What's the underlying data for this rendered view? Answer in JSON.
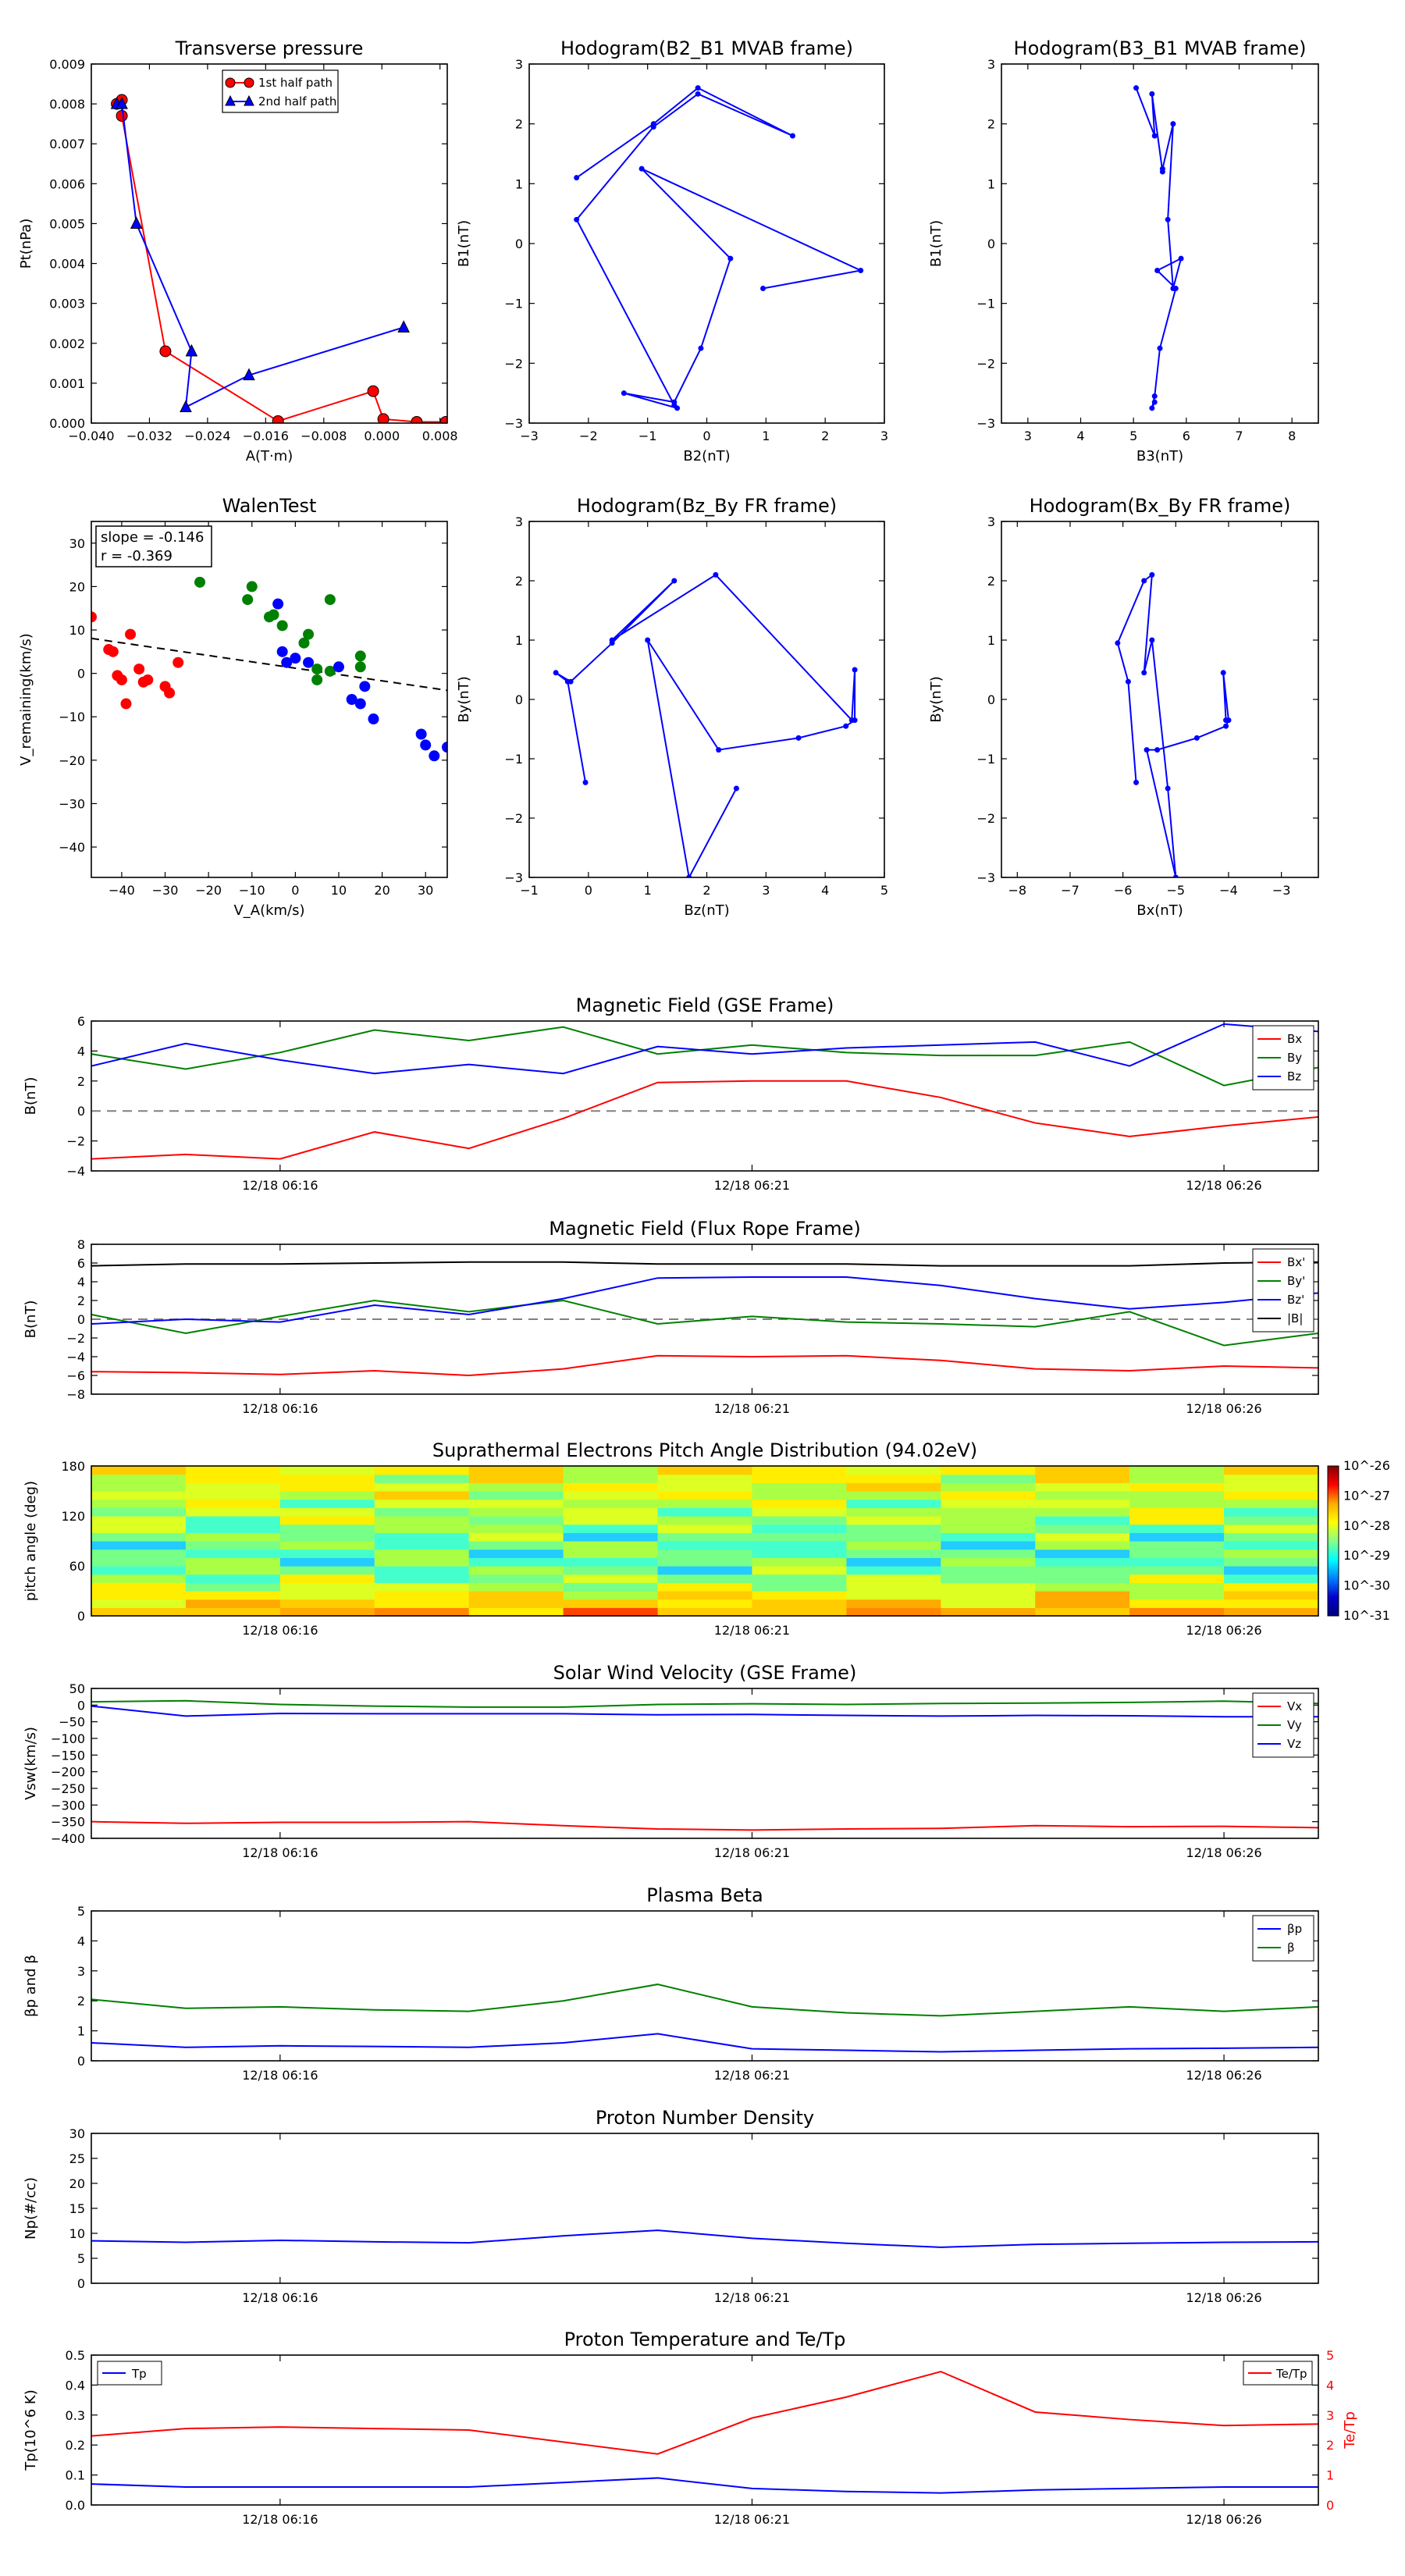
{
  "colors": {
    "red": "#ff0000",
    "green": "#008000",
    "blue": "#0000ff",
    "black": "#000000",
    "dash": "#808080"
  },
  "panels": [
    {
      "id": "tp",
      "title": "Transverse pressure",
      "xlabel": "A(T·m)",
      "ylabel": "Pt(nPa)",
      "xlim": [
        -0.04,
        0.009
      ],
      "ylim": [
        0,
        0.009
      ],
      "xticks": [
        -0.04,
        -0.032,
        -0.024,
        -0.016,
        -0.008,
        0,
        0.008
      ],
      "xtick_labels": [
        "−0.040",
        "−0.032",
        "−0.024",
        "−0.016",
        "−0.008",
        "0.000",
        "0.008"
      ],
      "yticks": [
        0,
        0.001,
        0.002,
        0.003,
        0.004,
        0.005,
        0.006,
        0.007,
        0.008,
        0.009
      ],
      "ytick_labels": [
        "0.000",
        "0.001",
        "0.002",
        "0.003",
        "0.004",
        "0.005",
        "0.006",
        "0.007",
        "0.008",
        "0.009"
      ],
      "legend": [
        "1st half path",
        "2nd half path"
      ],
      "series": [
        {
          "name": "1st half path",
          "color": "red",
          "marker": "circle",
          "x": [
            -0.0365,
            -0.0358,
            -0.0358,
            -0.0298,
            -0.0143,
            -0.0012,
            0.0002,
            0.0048,
            0.0088
          ],
          "y": [
            0.008,
            0.0081,
            0.0077,
            0.0018,
            5e-05,
            0.0008,
            0.0001,
            3e-05,
            3e-05
          ]
        },
        {
          "name": "2nd half path",
          "color": "blue",
          "marker": "triangle",
          "x": [
            -0.0365,
            -0.0358,
            -0.0338,
            -0.0262,
            -0.027,
            -0.0183,
            0.003
          ],
          "y": [
            0.008,
            0.008,
            0.005,
            0.0018,
            0.0004,
            0.0012,
            0.0024
          ]
        }
      ]
    },
    {
      "id": "h1",
      "title": "Hodogram(B2_B1 MVAB frame)",
      "xlabel": "B2(nT)",
      "ylabel": "B1(nT)",
      "xlim": [
        -3,
        3
      ],
      "ylim": [
        -3,
        3
      ],
      "xticks": [
        -3,
        -2,
        -1,
        0,
        1,
        2,
        3
      ],
      "xtick_labels": [
        "−3",
        "−2",
        "−1",
        "0",
        "1",
        "2",
        "3"
      ],
      "yticks": [
        -3,
        -2,
        -1,
        0,
        1,
        2,
        3
      ],
      "ytick_labels": [
        "−3",
        "−2",
        "−1",
        "0",
        "1",
        "2",
        "3"
      ],
      "series": [
        {
          "color": "blue",
          "marker": "dot",
          "x": [
            -2.2,
            -0.9,
            -0.15,
            1.45,
            -0.15,
            -0.9,
            -2.2,
            -0.55,
            -0.5,
            -1.4,
            -0.55,
            -0.1,
            0.4,
            -1.1,
            2.6,
            0.95
          ],
          "y": [
            1.1,
            2.0,
            2.6,
            1.8,
            2.5,
            1.95,
            0.4,
            -2.7,
            -2.75,
            -2.5,
            -2.65,
            -1.75,
            -0.25,
            1.25,
            -0.45,
            -0.75
          ]
        }
      ]
    },
    {
      "id": "h2",
      "title": "Hodogram(B3_B1 MVAB frame)",
      "xlabel": "B3(nT)",
      "ylabel": "B1(nT)",
      "xlim": [
        2.5,
        8.5
      ],
      "ylim": [
        -3,
        3
      ],
      "xticks": [
        3,
        4,
        5,
        6,
        7,
        8
      ],
      "xtick_labels": [
        "3",
        "4",
        "5",
        "6",
        "7",
        "8"
      ],
      "yticks": [
        -3,
        -2,
        -1,
        0,
        1,
        2,
        3
      ],
      "ytick_labels": [
        "−3",
        "−2",
        "−1",
        "0",
        "1",
        "2",
        "3"
      ],
      "series": [
        {
          "color": "blue",
          "marker": "dot",
          "x": [
            5.05,
            5.4,
            5.35,
            5.55,
            5.55,
            5.75,
            5.65,
            5.75,
            5.9,
            5.45,
            5.8,
            5.5,
            5.4,
            5.35,
            5.4
          ],
          "y": [
            2.6,
            1.8,
            2.5,
            1.2,
            1.25,
            2.0,
            0.4,
            -0.75,
            -0.25,
            -0.45,
            -0.75,
            -1.75,
            -2.55,
            -2.75,
            -2.65
          ]
        }
      ]
    },
    {
      "id": "walen",
      "title": "WalenTest",
      "xlabel": "V_A(km/s)",
      "ylabel": "V_remaining(km/s)",
      "xlim": [
        -47,
        35
      ],
      "ylim": [
        -47,
        35
      ],
      "xticks": [
        -40,
        -30,
        -20,
        -10,
        0,
        10,
        20,
        30
      ],
      "xtick_labels": [
        "−40",
        "−30",
        "−20",
        "−10",
        "0",
        "10",
        "20",
        "30"
      ],
      "yticks": [
        -40,
        -30,
        -20,
        -10,
        0,
        10,
        20,
        30
      ],
      "ytick_labels": [
        "−40",
        "−30",
        "−20",
        "−10",
        "0",
        "10",
        "20",
        "30"
      ],
      "annotation": [
        "slope = -0.146",
        "r = -0.369"
      ],
      "fit": {
        "slope": -0.146,
        "intercept": 1.2
      },
      "groups": [
        {
          "color": "red",
          "x": [
            -47,
            -43,
            -42,
            -41,
            -40,
            -39,
            -38,
            -36,
            -35,
            -34,
            -30,
            -29,
            -27
          ],
          "y": [
            13,
            5.5,
            5,
            -0.5,
            -1.5,
            -7,
            9,
            1,
            -2,
            -1.5,
            -3,
            -4.5,
            2.5
          ]
        },
        {
          "color": "green",
          "x": [
            -22,
            -11,
            -10,
            -6,
            -5,
            -3,
            2,
            3,
            5,
            5,
            8,
            8,
            15,
            15
          ],
          "y": [
            21,
            17,
            20,
            13,
            13.5,
            11,
            7,
            9,
            -1.5,
            1,
            0.5,
            17,
            1.5,
            4
          ]
        },
        {
          "color": "blue",
          "x": [
            -4,
            -3,
            -2,
            0,
            3,
            10,
            13,
            15,
            16,
            18,
            29,
            30,
            32,
            35
          ],
          "y": [
            16,
            5,
            2.5,
            3.5,
            2.5,
            1.5,
            -6,
            -7,
            -3,
            -10.5,
            -14,
            -16.5,
            -19,
            -17
          ]
        }
      ]
    },
    {
      "id": "h3",
      "title": "Hodogram(Bz_By FR frame)",
      "xlabel": "Bz(nT)",
      "ylabel": "By(nT)",
      "xlim": [
        -1,
        5
      ],
      "ylim": [
        -3,
        3
      ],
      "xticks": [
        -1,
        0,
        1,
        2,
        3,
        4,
        5
      ],
      "xtick_labels": [
        "−1",
        "0",
        "1",
        "2",
        "3",
        "4",
        "5"
      ],
      "yticks": [
        -3,
        -2,
        -1,
        0,
        1,
        2,
        3
      ],
      "ytick_labels": [
        "−3",
        "−2",
        "−1",
        "0",
        "1",
        "2",
        "3"
      ],
      "series": [
        {
          "color": "blue",
          "marker": "dot",
          "x": [
            -0.05,
            -0.35,
            -0.55,
            -0.3,
            0.4,
            1.45,
            0.4,
            2.15,
            4.45,
            4.5,
            4.5,
            4.35,
            3.55,
            2.2,
            1.0,
            1.7,
            2.5
          ],
          "y": [
            -1.4,
            0.3,
            0.45,
            0.3,
            0.95,
            2.0,
            1.0,
            2.1,
            -0.35,
            0.5,
            -0.35,
            -0.45,
            -0.65,
            -0.85,
            1.0,
            -3.0,
            -1.5
          ]
        }
      ]
    },
    {
      "id": "h4",
      "title": "Hodogram(Bx_By FR frame)",
      "xlabel": "Bx(nT)",
      "ylabel": "By(nT)",
      "xlim": [
        -8.3,
        -2.3
      ],
      "ylim": [
        -3,
        3
      ],
      "xticks": [
        -8,
        -7,
        -6,
        -5,
        -4,
        -3
      ],
      "xtick_labels": [
        "−8",
        "−7",
        "−6",
        "−5",
        "−4",
        "−3"
      ],
      "yticks": [
        -3,
        -2,
        -1,
        0,
        1,
        2,
        3
      ],
      "ytick_labels": [
        "−3",
        "−2",
        "−1",
        "0",
        "1",
        "2",
        "3"
      ],
      "series": [
        {
          "color": "blue",
          "marker": "dot",
          "x": [
            -5.75,
            -5.9,
            -6.1,
            -5.6,
            -5.45,
            -5.6,
            -5.45,
            -5.15,
            -5.0,
            -5.55,
            -5.35,
            -4.6,
            -4.05,
            -4.0,
            -4.1,
            -4.05
          ],
          "y": [
            -1.4,
            0.3,
            0.95,
            2.0,
            2.1,
            0.45,
            1.0,
            -1.5,
            -3.0,
            -0.85,
            -0.85,
            -0.65,
            -0.45,
            -0.35,
            0.45,
            -0.35
          ]
        }
      ]
    }
  ],
  "time_axis": {
    "tmin": 0,
    "tmax": 13,
    "ticks": [
      2,
      7,
      12
    ],
    "tick_labels": [
      "12/18 06:16",
      "12/18 06:21",
      "12/18 06:26"
    ],
    "x": [
      0,
      1,
      2,
      3,
      4,
      5,
      6,
      7,
      8,
      9,
      10,
      11,
      12,
      13
    ]
  },
  "time_panels": [
    {
      "id": "mag_gse",
      "title": "Magnetic Field (GSE Frame)",
      "ylabel": "B(nT)",
      "ylim": [
        -4,
        6
      ],
      "yticks": [
        -4,
        -2,
        0,
        2,
        4,
        6
      ],
      "ytick_labels": [
        "−4",
        "−2",
        "0",
        "2",
        "4",
        "6"
      ],
      "zero_line": true,
      "legend_pos": "right",
      "series": [
        {
          "name": "Bx",
          "color": "red",
          "values": [
            -3.2,
            -2.9,
            -3.2,
            -1.4,
            -2.5,
            -0.5,
            1.9,
            2.0,
            2.0,
            0.9,
            -0.8,
            -1.7,
            -1.0,
            -0.4
          ]
        },
        {
          "name": "By",
          "color": "green",
          "values": [
            3.8,
            2.8,
            3.9,
            5.4,
            4.7,
            5.6,
            3.8,
            4.4,
            3.9,
            3.7,
            3.7,
            4.6,
            1.7,
            2.9
          ]
        },
        {
          "name": "Bz",
          "color": "blue",
          "values": [
            3.0,
            4.5,
            3.4,
            2.5,
            3.1,
            2.5,
            4.3,
            3.8,
            4.2,
            4.4,
            4.6,
            3.0,
            5.8,
            5.3
          ]
        }
      ]
    },
    {
      "id": "mag_fr",
      "title": "Magnetic Field (Flux Rope Frame)",
      "ylabel": "B(nT)",
      "ylim": [
        -8,
        8
      ],
      "yticks": [
        -8,
        -6,
        -4,
        -2,
        0,
        2,
        4,
        6,
        8
      ],
      "ytick_labels": [
        "−8",
        "−6",
        "−4",
        "−2",
        "0",
        "2",
        "4",
        "6",
        "8"
      ],
      "zero_line": true,
      "legend_pos": "right",
      "series": [
        {
          "name": "Bx'",
          "color": "red",
          "values": [
            -5.6,
            -5.7,
            -5.9,
            -5.5,
            -6.0,
            -5.3,
            -3.9,
            -4.0,
            -3.9,
            -4.4,
            -5.3,
            -5.5,
            -5.0,
            -5.2
          ]
        },
        {
          "name": "By'",
          "color": "green",
          "values": [
            0.5,
            -1.5,
            0.3,
            2.0,
            0.8,
            2.0,
            -0.5,
            0.3,
            -0.3,
            -0.5,
            -0.8,
            0.8,
            -2.8,
            -1.5
          ]
        },
        {
          "name": "Bz'",
          "color": "blue",
          "values": [
            -0.5,
            0,
            -0.3,
            1.5,
            0.5,
            2.2,
            4.4,
            4.5,
            4.5,
            3.6,
            2.2,
            1.1,
            1.8,
            2.8
          ]
        },
        {
          "name": "|B|",
          "color": "black",
          "values": [
            5.7,
            5.9,
            5.9,
            6.0,
            6.1,
            6.1,
            5.9,
            5.9,
            5.9,
            5.7,
            5.7,
            5.7,
            6.0,
            6.1
          ]
        }
      ]
    },
    {
      "id": "pad",
      "type": "heatmap",
      "title": "Suprathermal Electrons Pitch Angle Distribution (94.02eV)",
      "ylabel": "pitch angle (deg)",
      "ylim": [
        0,
        180
      ],
      "yticks": [
        0,
        60,
        120,
        180
      ],
      "ytick_labels": [
        "0",
        "60",
        "120",
        "180"
      ],
      "colorbar_labels": [
        "10^-26",
        "10^-27",
        "10^-28",
        "10^-29",
        "10^-30",
        "10^-31"
      ],
      "columns": 13,
      "rows": 18,
      "base_profile": [
        0.25,
        0.35,
        0.42,
        0.55,
        0.62,
        0.7,
        0.72,
        0.72,
        0.7,
        0.68,
        0.65,
        0.6,
        0.58,
        0.55,
        0.52,
        0.5,
        0.48,
        0.42
      ]
    },
    {
      "id": "vsw",
      "title": "Solar Wind Velocity (GSE Frame)",
      "ylabel": "Vsw(km/s)",
      "ylim": [
        -400,
        50
      ],
      "yticks": [
        -400,
        -350,
        -300,
        -250,
        -200,
        -150,
        -100,
        -50,
        0,
        50
      ],
      "ytick_labels": [
        "−400",
        "−350",
        "−300",
        "−250",
        "−200",
        "−150",
        "−100",
        "−50",
        "0",
        "50"
      ],
      "legend_pos": "right",
      "series": [
        {
          "name": "Vx",
          "color": "red",
          "values": [
            -350,
            -355,
            -352,
            -352,
            -350,
            -362,
            -372,
            -375,
            -372,
            -370,
            -362,
            -365,
            -364,
            -368
          ]
        },
        {
          "name": "Vy",
          "color": "green",
          "values": [
            10,
            13,
            2,
            -3,
            -6,
            -6,
            2,
            4,
            2,
            5,
            6,
            8,
            12,
            5
          ]
        },
        {
          "name": "Vz",
          "color": "blue",
          "values": [
            -3,
            -33,
            -25,
            -26,
            -26,
            -26,
            -29,
            -28,
            -31,
            -33,
            -31,
            -32,
            -35,
            -35
          ]
        }
      ]
    },
    {
      "id": "beta",
      "title": "Plasma Beta",
      "ylabel": "βp and β",
      "ylim": [
        0,
        5
      ],
      "yticks": [
        0,
        1,
        2,
        3,
        4,
        5
      ],
      "ytick_labels": [
        "0",
        "1",
        "2",
        "3",
        "4",
        "5"
      ],
      "legend_pos": "right",
      "series": [
        {
          "name": "βp",
          "color": "blue",
          "values": [
            0.6,
            0.45,
            0.5,
            0.48,
            0.45,
            0.6,
            0.9,
            0.4,
            0.35,
            0.3,
            0.35,
            0.4,
            0.42,
            0.45
          ]
        },
        {
          "name": "β",
          "color": "green",
          "values": [
            2.05,
            1.75,
            1.8,
            1.7,
            1.65,
            2.0,
            2.55,
            1.8,
            1.6,
            1.5,
            1.65,
            1.8,
            1.65,
            1.8
          ]
        }
      ]
    },
    {
      "id": "np",
      "title": "Proton Number Density",
      "ylabel": "Np(#/cc)",
      "ylim": [
        0,
        30
      ],
      "yticks": [
        0,
        5,
        10,
        15,
        20,
        25,
        30
      ],
      "ytick_labels": [
        "0",
        "5",
        "10",
        "15",
        "20",
        "25",
        "30"
      ],
      "legend_pos": "none",
      "series": [
        {
          "name": "Np",
          "color": "blue",
          "values": [
            8.5,
            8.2,
            8.6,
            8.3,
            8.1,
            9.5,
            10.6,
            9.0,
            8.0,
            7.2,
            7.8,
            8.0,
            8.2,
            8.3
          ]
        }
      ]
    },
    {
      "id": "tpr",
      "title": "Proton Temperature and Te/Tp",
      "ylabel": "Tp(10^6 K)",
      "ylim": [
        0,
        0.5
      ],
      "yticks": [
        0,
        0.1,
        0.2,
        0.3,
        0.4,
        0.5
      ],
      "ytick_labels": [
        "0.0",
        "0.1",
        "0.2",
        "0.3",
        "0.4",
        "0.5"
      ],
      "y2label": "Te/Tp",
      "y2lim": [
        0,
        5
      ],
      "y2ticks": [
        0,
        1,
        2,
        3,
        4,
        5
      ],
      "y2tick_labels": [
        "0",
        "1",
        "2",
        "3",
        "4",
        "5"
      ],
      "series": [
        {
          "name": "Tp",
          "color": "blue",
          "values": [
            0.07,
            0.06,
            0.06,
            0.06,
            0.06,
            0.075,
            0.09,
            0.055,
            0.045,
            0.04,
            0.05,
            0.055,
            0.06,
            0.06
          ]
        }
      ],
      "series2": [
        {
          "name": "Te/Tp",
          "color": "red",
          "values": [
            2.3,
            2.55,
            2.6,
            2.55,
            2.5,
            2.1,
            1.7,
            2.9,
            3.6,
            4.45,
            3.1,
            2.85,
            2.65,
            2.7
          ]
        }
      ]
    }
  ]
}
